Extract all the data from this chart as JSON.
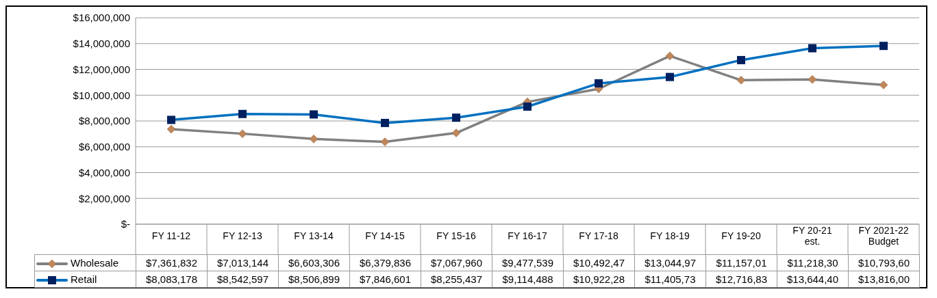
{
  "chart_data": {
    "type": "line",
    "categories": [
      "FY 11-12",
      "FY 12-13",
      "FY 13-14",
      "FY 14-15",
      "FY 15-16",
      "FY 16-17",
      "FY 17-18",
      "FY 18-19",
      "FY 19-20",
      "FY 20-21 est.",
      "FY 2021-22 Budget"
    ],
    "series": [
      {
        "name": "Wholesale",
        "color": "#808080",
        "marker": "diamond",
        "values": [
          7361832,
          7013144,
          6603306,
          6379836,
          7067960,
          9477539,
          10490000,
          13040000,
          11160000,
          11220000,
          10790000
        ],
        "value_labels": [
          "$7,361,832",
          "$7,013,144",
          "$6,603,306",
          "$6,379,836",
          "$7,067,960",
          "$9,477,539",
          "$10,492,47",
          "$13,044,97",
          "$11,157,01",
          "$11,218,30",
          "$10,793,60"
        ]
      },
      {
        "name": "Retail",
        "color": "#0070c0",
        "marker": "square",
        "values": [
          8083178,
          8542597,
          8506899,
          7846601,
          8255437,
          9114488,
          10920000,
          11410000,
          12720000,
          13640000,
          13820000
        ],
        "value_labels": [
          "$8,083,178",
          "$8,542,597",
          "$8,506,899",
          "$7,846,601",
          "$8,255,437",
          "$9,114,488",
          "$10,922,28",
          "$11,405,73",
          "$12,716,83",
          "$13,644,40",
          "$13,816,00"
        ]
      }
    ],
    "ylim": [
      0,
      16000000
    ],
    "yticks": [
      {
        "value": 0,
        "label": "$-"
      },
      {
        "value": 2000000,
        "label": "$2,000,000"
      },
      {
        "value": 4000000,
        "label": "$4,000,000"
      },
      {
        "value": 6000000,
        "label": "$6,000,000"
      },
      {
        "value": 8000000,
        "label": "$8,000,000"
      },
      {
        "value": 10000000,
        "label": "$10,000,000"
      },
      {
        "value": 12000000,
        "label": "$12,000,000"
      },
      {
        "value": 14000000,
        "label": "$14,000,000"
      },
      {
        "value": 16000000,
        "label": "$16,000,000"
      }
    ],
    "grid": "y",
    "legend": "bottom",
    "line_style": "solid"
  }
}
